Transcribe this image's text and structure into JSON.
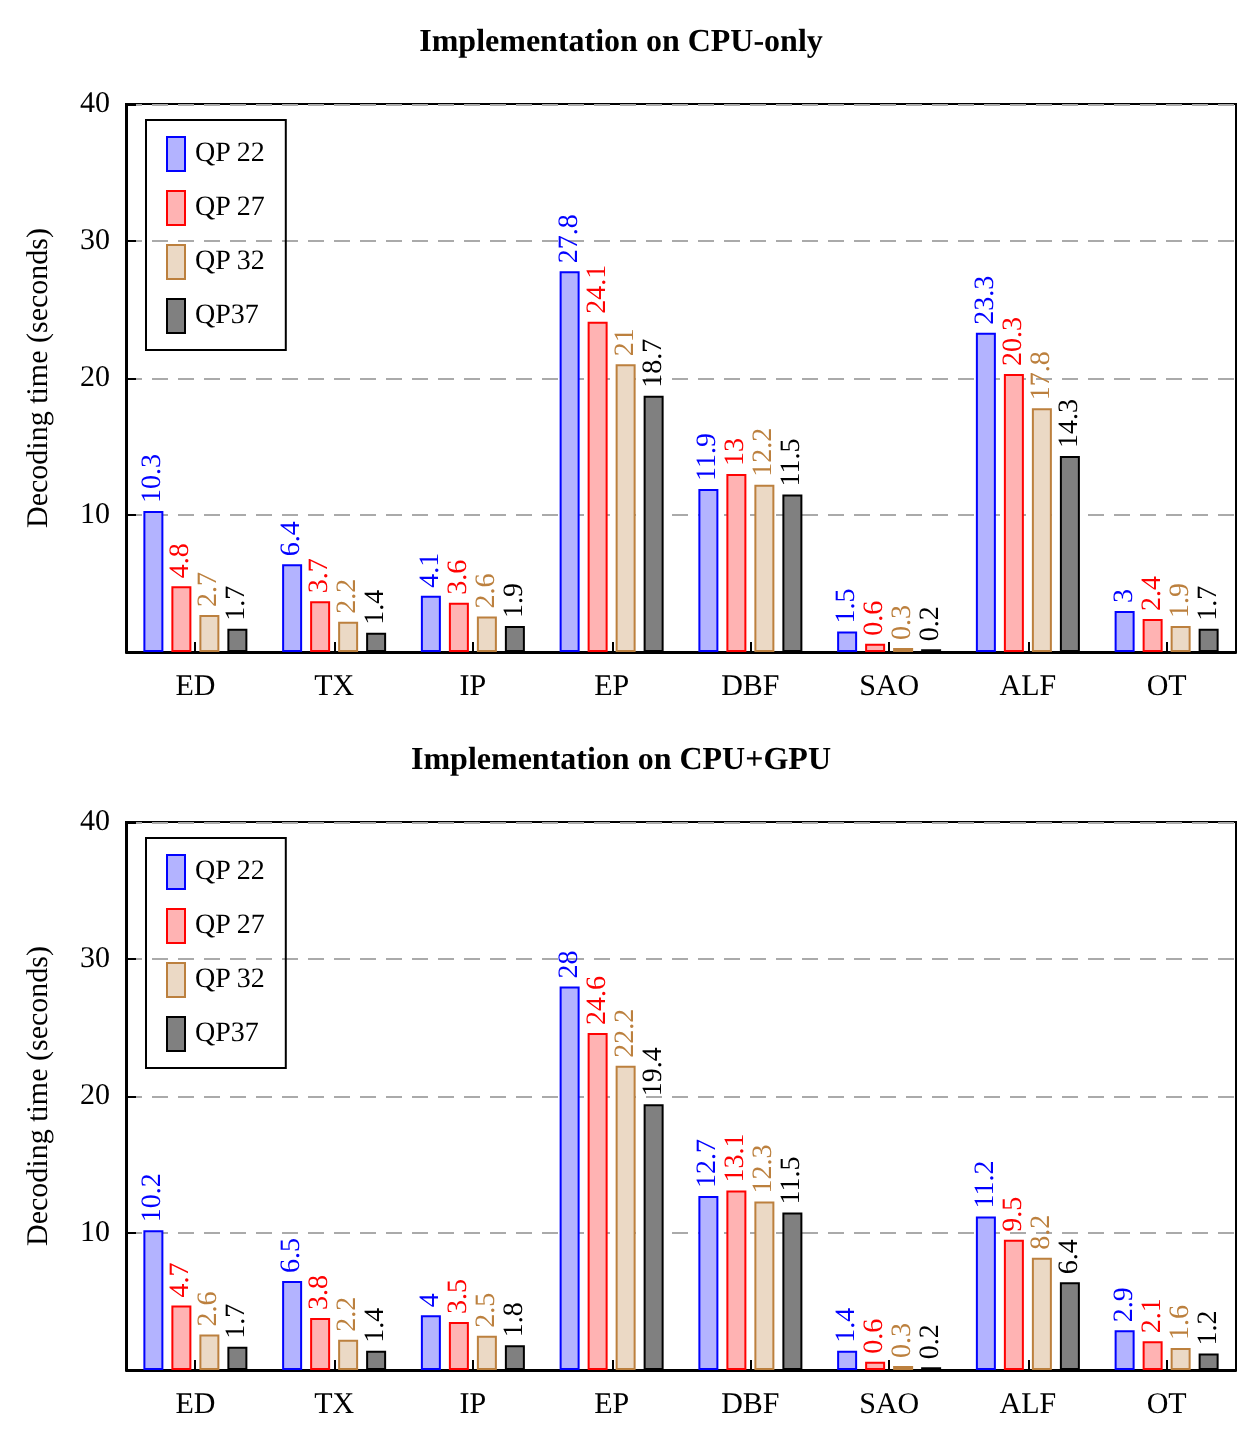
{
  "chart_data": [
    {
      "type": "bar",
      "title": "Implementation on CPU-only",
      "ylabel": "Decoding time (seconds)",
      "categories": [
        "ED",
        "TX",
        "IP",
        "EP",
        "DBF",
        "SAO",
        "ALF",
        "OT"
      ],
      "series": [
        {
          "name": "QP 22",
          "color": "#b3b3ff",
          "values": [
            10.3,
            6.4,
            4.1,
            27.8,
            11.9,
            1.5,
            23.3,
            3
          ]
        },
        {
          "name": "QP 27",
          "color": "#ffb3b3",
          "values": [
            4.8,
            3.7,
            3.6,
            24.1,
            13,
            0.6,
            20.3,
            2.4
          ]
        },
        {
          "name": "QP 32",
          "color": "#ebd9c5",
          "values": [
            2.7,
            2.2,
            2.6,
            21,
            12.2,
            0.3,
            17.8,
            1.9
          ]
        },
        {
          "name": "QP37",
          "color": "#808080",
          "values": [
            1.7,
            1.4,
            1.9,
            18.7,
            11.5,
            0.2,
            14.3,
            1.7
          ]
        }
      ],
      "ylim": [
        0,
        40
      ],
      "yticks": [
        10,
        20,
        30,
        40
      ],
      "grid": "y",
      "legend": "top left",
      "data_labels": true
    },
    {
      "type": "bar",
      "title": "Implementation on CPU+GPU",
      "ylabel": "Decoding time (seconds)",
      "categories": [
        "ED",
        "TX",
        "IP",
        "EP",
        "DBF",
        "SAO",
        "ALF",
        "OT"
      ],
      "series": [
        {
          "name": "QP 22",
          "color": "#b3b3ff",
          "values": [
            10.2,
            6.5,
            4,
            28,
            12.7,
            1.4,
            11.2,
            2.9
          ]
        },
        {
          "name": "QP 27",
          "color": "#ffb3b3",
          "values": [
            4.7,
            3.8,
            3.5,
            24.6,
            13.1,
            0.6,
            9.5,
            2.1
          ]
        },
        {
          "name": "QP 32",
          "color": "#ebd9c5",
          "values": [
            2.6,
            2.2,
            2.5,
            22.2,
            12.3,
            0.3,
            8.2,
            1.6
          ]
        },
        {
          "name": "QP37",
          "color": "#808080",
          "values": [
            1.7,
            1.4,
            1.8,
            19.4,
            11.5,
            0.2,
            6.4,
            1.2
          ]
        }
      ],
      "ylim": [
        0,
        40
      ],
      "yticks": [
        10,
        20,
        30,
        40
      ],
      "grid": "y",
      "legend": "top left",
      "data_labels": true
    }
  ]
}
